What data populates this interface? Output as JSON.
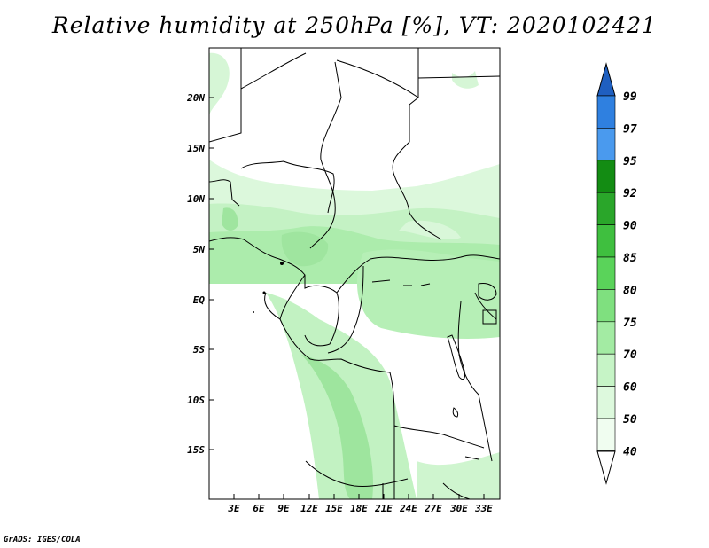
{
  "title": "Relative humidity at 250hPa [%], VT: 2020102421",
  "credit": "GrADS: IGES/COLA",
  "lat_labels": [
    "20N",
    "15N",
    "10N",
    "5N",
    "EQ",
    "5S",
    "10S",
    "15S"
  ],
  "lon_labels": [
    "3E",
    "6E",
    "9E",
    "12E",
    "15E",
    "18E",
    "21E",
    "24E",
    "27E",
    "30E",
    "33E"
  ],
  "colorbar": {
    "levels": [
      "99",
      "97",
      "95",
      "92",
      "90",
      "85",
      "80",
      "75",
      "70",
      "60",
      "50",
      "40"
    ],
    "colors": [
      "#2a6fd0",
      "#2f80e0",
      "#4a9aee",
      "#138c13",
      "#2aa62a",
      "#3fbf3f",
      "#5ad35a",
      "#7fe07f",
      "#a3eba3",
      "#c6f4c6",
      "#ddf9dd",
      "#f0fdf0"
    ]
  },
  "colors": {
    "humid_light": "#c9f3c9",
    "humid_mid": "#a8eba8",
    "humid_dark": "#8fe08f",
    "border": "#000000"
  }
}
